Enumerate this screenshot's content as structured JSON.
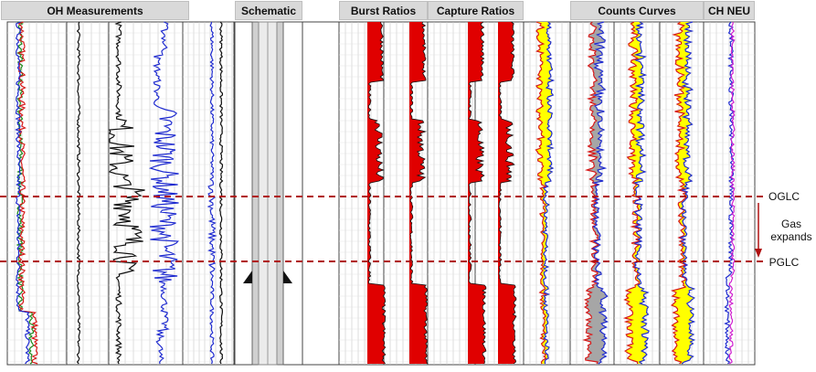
{
  "headers": {
    "oh_measurements": "OH Measurements",
    "schematic": "Schematic",
    "burst_ratios": "Burst Ratios",
    "capture_ratios": "Capture Ratios",
    "counts_curves": "Counts Curves",
    "ch_neu": "CH NEU"
  },
  "annotations": {
    "oglc": "OGLC",
    "pglc": "PGLC",
    "gas_expands": [
      "Gas",
      "expands"
    ]
  },
  "colors": {
    "contact_line": "#b01010",
    "fill_red": "#e00000",
    "fill_yellow": "#ffff00",
    "fill_gray": "#a6a6a6",
    "curve_blue": "#1f2bd0",
    "curve_red": "#d81818",
    "curve_green": "#1a8a1a",
    "curve_black": "#111111",
    "curve_magenta": "#d020d0",
    "grid": "#c8c8c8",
    "header_bg": "#d9d9d9"
  }
}
